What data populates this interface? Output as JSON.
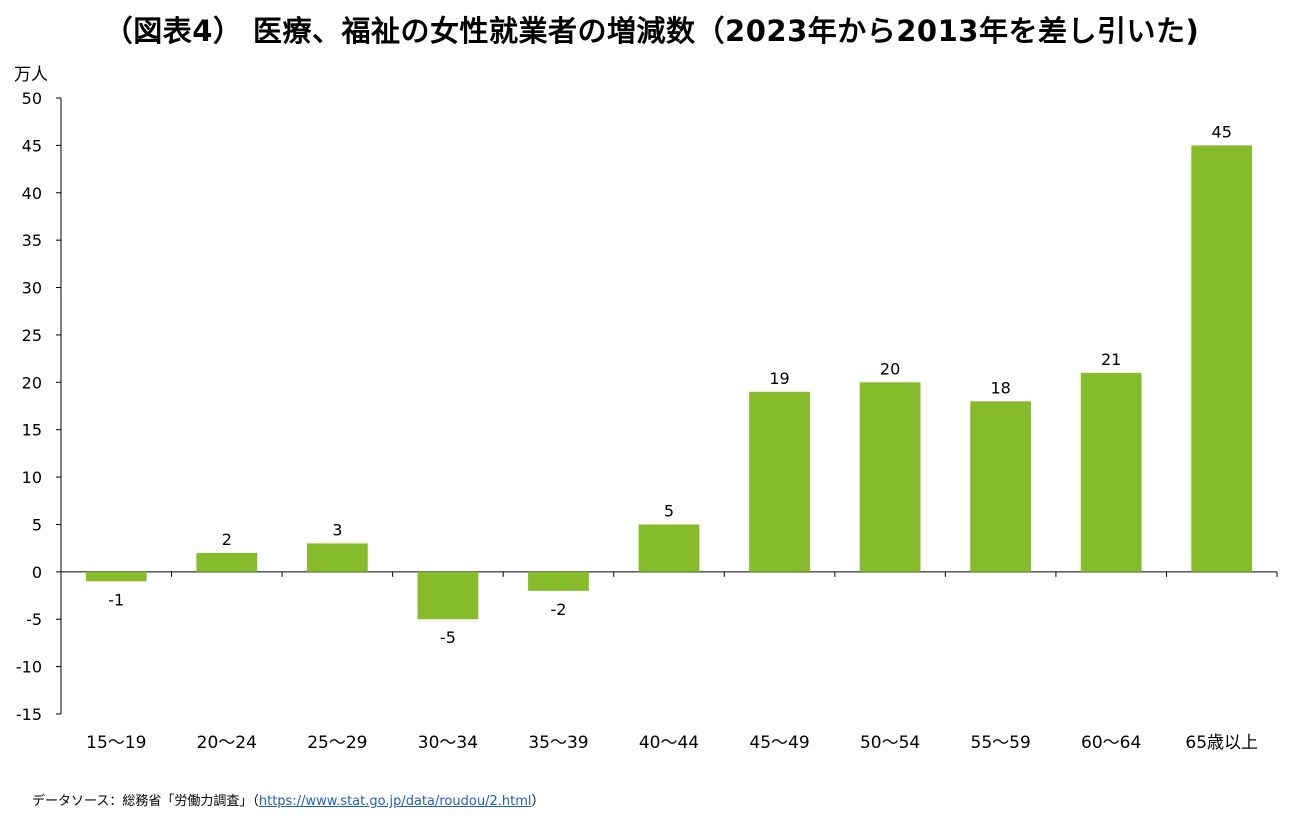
{
  "title": "（図表4） 医療、福祉の女性就業者の増減数（2023年から2013年を差し引いた)",
  "source": {
    "prefix": "データソース：総務省「労働力調査」（",
    "link": "https://www.stat.go.jp/data/roudou/2.html",
    "suffix": "）"
  },
  "colors": {
    "bar": "#86bc2b",
    "axis": "#000000"
  },
  "chart_data": {
    "type": "bar",
    "ylabel": "万人",
    "ylim": [
      -15,
      50
    ],
    "ytick_step": 5,
    "grid": false,
    "categories": [
      "15〜19",
      "20〜24",
      "25〜29",
      "30〜34",
      "35〜39",
      "40〜44",
      "45〜49",
      "50〜54",
      "55〜59",
      "60〜64",
      "65歳以上"
    ],
    "values": [
      -1,
      2,
      3,
      -5,
      -2,
      5,
      19,
      20,
      18,
      21,
      45
    ]
  }
}
